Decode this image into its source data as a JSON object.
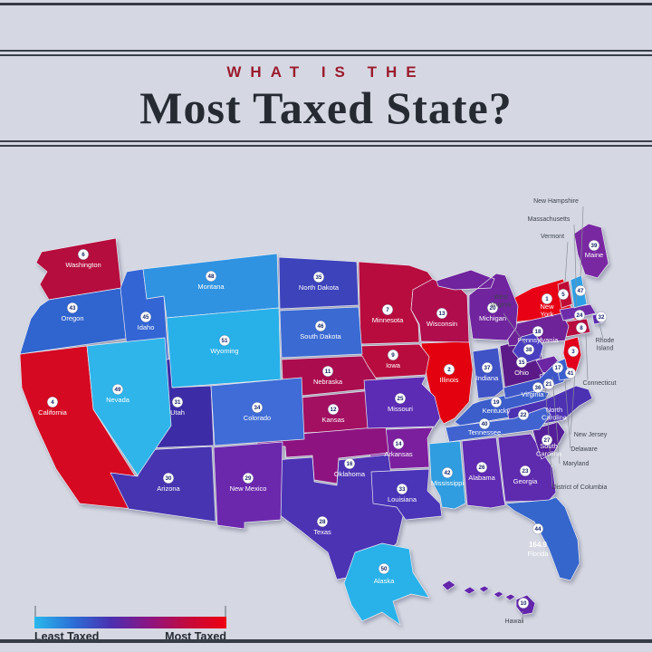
{
  "header": {
    "kicker": "WHAT IS THE",
    "title": "Most Taxed State?"
  },
  "legend": {
    "least_label": "Least Taxed",
    "most_label": "Most Taxed",
    "gradient": [
      "#2ab9ec",
      "#2b6fd6",
      "#4b2fb0",
      "#8c1582",
      "#c40a3c",
      "#ee0010"
    ]
  },
  "map": {
    "states": [
      {
        "id": "NY",
        "name": "New York",
        "rank": 1,
        "color": "#e80014"
      },
      {
        "id": "IL",
        "name": "Illinois",
        "rank": 2,
        "color": "#e3000f"
      },
      {
        "id": "NJ",
        "name": "New Jersey",
        "rank": 3,
        "color": "#e3001b"
      },
      {
        "id": "CA",
        "name": "California",
        "rank": 4,
        "color": "#d50922"
      },
      {
        "id": "VT",
        "name": "Vermont",
        "rank": 5,
        "color": "#c00b34"
      },
      {
        "id": "WA",
        "name": "Washington",
        "rank": 6,
        "color": "#b50d3d"
      },
      {
        "id": "MN",
        "name": "Minnesota",
        "rank": 7,
        "color": "#b80c3e"
      },
      {
        "id": "CT",
        "name": "Connecticut",
        "rank": 8,
        "color": "#b80c3e"
      },
      {
        "id": "IA",
        "name": "Iowa",
        "rank": 9,
        "color": "#b80c3e"
      },
      {
        "id": "HI",
        "name": "Hawaii",
        "rank": 10,
        "color": "#6326ab"
      },
      {
        "id": "NE",
        "name": "Nebraska",
        "rank": 11,
        "color": "#ab0c4e"
      },
      {
        "id": "KS",
        "name": "Kansas",
        "rank": 12,
        "color": "#a31061"
      },
      {
        "id": "WI",
        "name": "Wisconsin",
        "rank": 13,
        "color": "#b00d4c"
      },
      {
        "id": "AR",
        "name": "Arkansas",
        "rank": 14,
        "color": "#7c1f9e"
      },
      {
        "id": "OH",
        "name": "Ohio",
        "rank": 15,
        "color": "#5c1a88"
      },
      {
        "id": "OK",
        "name": "Oklahoma",
        "rank": 16,
        "color": "#8d1480"
      },
      {
        "id": "MD",
        "name": "Maryland",
        "rank": 17,
        "color": "#6c26a4"
      },
      {
        "id": "PA",
        "name": "Pennsylvania",
        "rank": 18,
        "color": "#6e2398"
      },
      {
        "id": "KY",
        "name": "Kentucky",
        "rank": 19,
        "color": "#3b5ecb"
      },
      {
        "id": "MI",
        "name": "Michigan",
        "rank": 20,
        "color": "#70249e"
      },
      {
        "id": "DC",
        "name": "District of Columbia",
        "rank": 21,
        "color": "#5e2bb2"
      },
      {
        "id": "NC",
        "name": "North Carolina",
        "rank": 22,
        "color": "#4c31b2"
      },
      {
        "id": "GA",
        "name": "Georgia",
        "rank": 23,
        "color": "#5e2aae"
      },
      {
        "id": "MA",
        "name": "Massachusetts",
        "rank": 24,
        "color": "#6e2caa"
      },
      {
        "id": "MO",
        "name": "Missouri",
        "rank": 25,
        "color": "#5c2cb4"
      },
      {
        "id": "AL",
        "name": "Alabama",
        "rank": 26,
        "color": "#5e2bb2"
      },
      {
        "id": "SC",
        "name": "South Carolina",
        "rank": 27,
        "color": "#551f9a"
      },
      {
        "id": "TX",
        "name": "Texas",
        "rank": 28,
        "color": "#4c33b4"
      },
      {
        "id": "NM",
        "name": "New Mexico",
        "rank": 29,
        "color": "#6b28ad"
      },
      {
        "id": "AZ",
        "name": "Arizona",
        "rank": 30,
        "color": "#4634b0"
      },
      {
        "id": "UT",
        "name": "Utah",
        "rank": 31,
        "color": "#3c2da6"
      },
      {
        "id": "RI",
        "name": "Rhode Island",
        "rank": 32,
        "color": "#5c2bb0"
      },
      {
        "id": "LA",
        "name": "Louisiana",
        "rank": 33,
        "color": "#4a34b8"
      },
      {
        "id": "CO",
        "name": "Colorado",
        "rank": 34,
        "color": "#3f6cd6"
      },
      {
        "id": "ND",
        "name": "North Dakota",
        "rank": 35,
        "color": "#3d43bb"
      },
      {
        "id": "VA",
        "name": "Virginia",
        "rank": 36,
        "color": "#3d56c8"
      },
      {
        "id": "IN",
        "name": "Indiana",
        "rank": 37,
        "color": "#4053c6"
      },
      {
        "id": "WV",
        "name": "West Virginia",
        "rank": 38,
        "color": "#4a3ec0"
      },
      {
        "id": "ME",
        "name": "Maine",
        "rank": 39,
        "color": "#7a28a2"
      },
      {
        "id": "TN",
        "name": "Tennessee",
        "rank": 40,
        "color": "#4163d0"
      },
      {
        "id": "DE",
        "name": "Delaware",
        "rank": 41,
        "color": "#3a5fce"
      },
      {
        "id": "MS",
        "name": "Mississippi",
        "rank": 42,
        "color": "#2f9ddf"
      },
      {
        "id": "OR",
        "name": "Oregon",
        "rank": 43,
        "color": "#3064cf"
      },
      {
        "id": "FL",
        "name": "Florida",
        "rank": 44,
        "color": "#3566cc",
        "value": "164.9"
      },
      {
        "id": "ID",
        "name": "Idaho",
        "rank": 45,
        "color": "#3365d4"
      },
      {
        "id": "SD",
        "name": "South Dakota",
        "rank": 46,
        "color": "#3a6ad2"
      },
      {
        "id": "NH",
        "name": "New Hampshire",
        "rank": 47,
        "color": "#2f9fe5"
      },
      {
        "id": "MT",
        "name": "Montana",
        "rank": 48,
        "color": "#2f93e2"
      },
      {
        "id": "NV",
        "name": "Nevada",
        "rank": 49,
        "color": "#2fb5ea"
      },
      {
        "id": "AK",
        "name": "Alaska",
        "rank": 50,
        "color": "#29b2e9"
      },
      {
        "id": "WY",
        "name": "Wyoming",
        "rank": 51,
        "color": "#28b0e8"
      }
    ]
  }
}
